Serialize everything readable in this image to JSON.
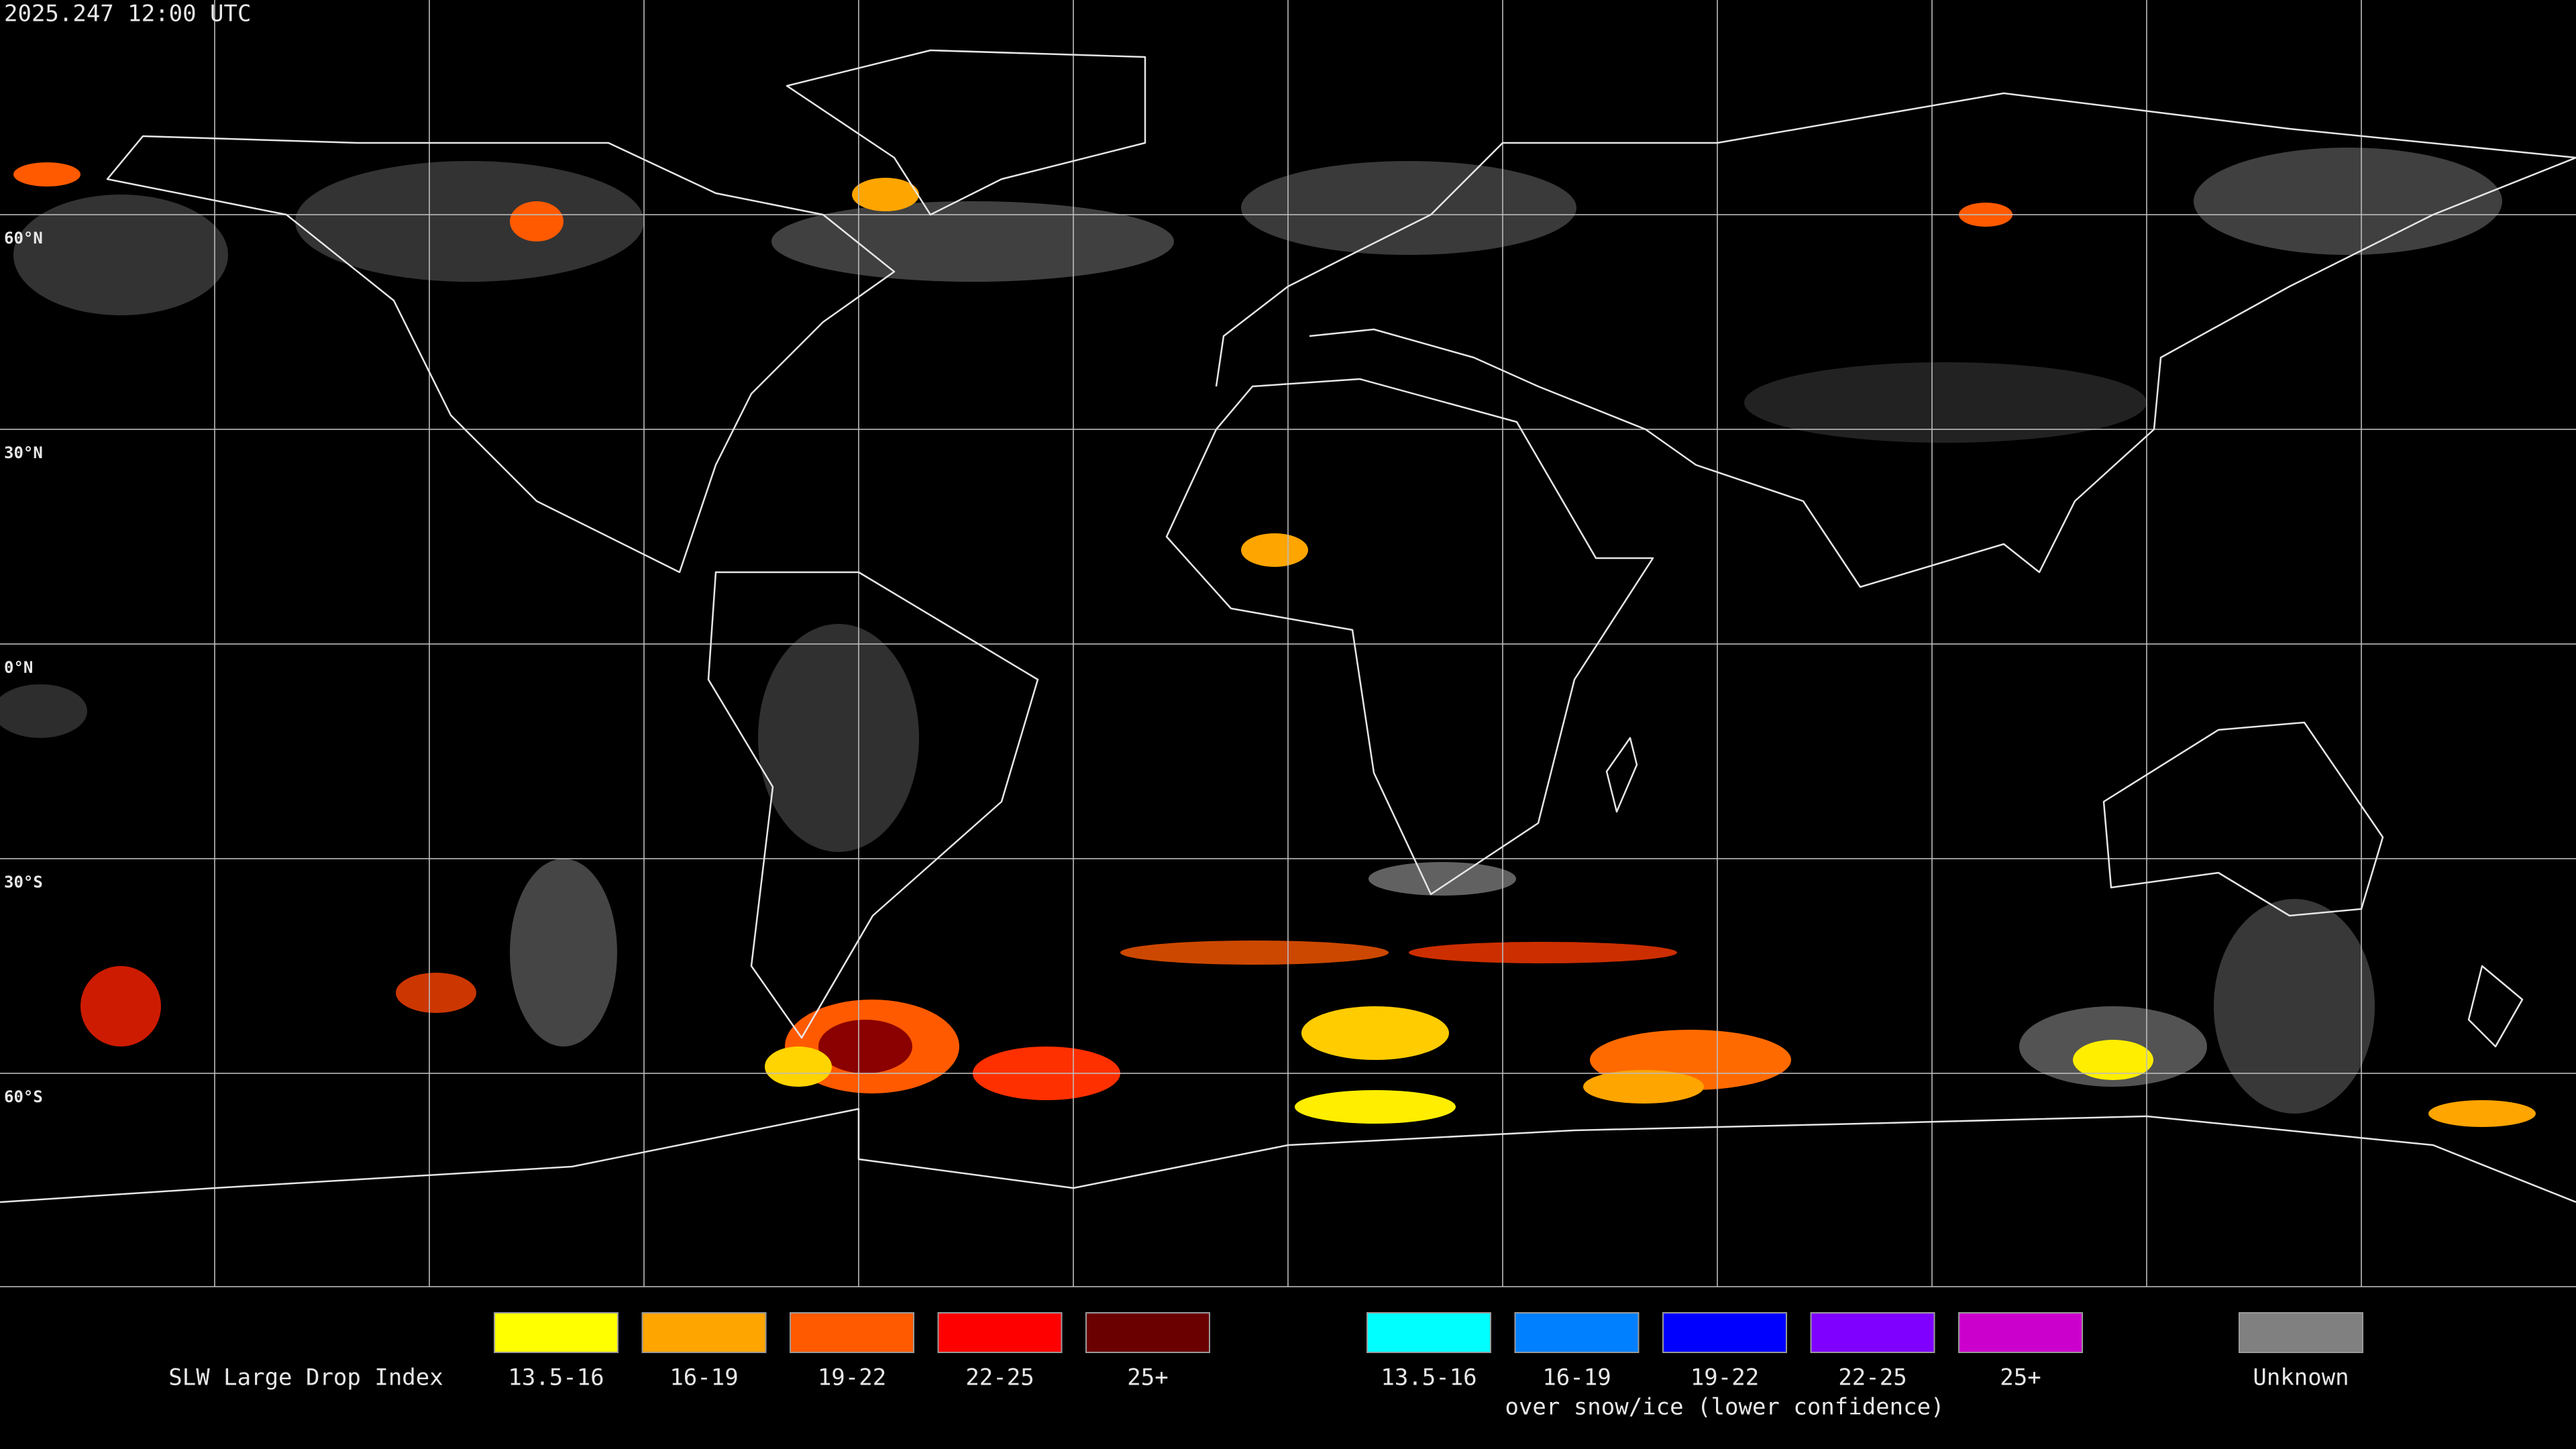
{
  "header": {
    "timestamp": "2025.247 12:00 UTC"
  },
  "map": {
    "latitude_labels": [
      "60°N",
      "30°N",
      "0°N",
      "30°S",
      "60°S"
    ]
  },
  "legend": {
    "title": "SLW Large Drop Index",
    "groups": [
      {
        "items": [
          {
            "label": "13.5-16",
            "color": "#ffff00"
          },
          {
            "label": "16-19",
            "color": "#ffa500"
          },
          {
            "label": "19-22",
            "color": "#ff5a00"
          },
          {
            "label": "22-25",
            "color": "#ff0000"
          },
          {
            "label": "25+",
            "color": "#6b0000"
          }
        ]
      },
      {
        "items": [
          {
            "label": "13.5-16",
            "color": "#00ffff"
          },
          {
            "label": "16-19",
            "color": "#0080ff"
          },
          {
            "label": "19-22",
            "color": "#0000ff"
          },
          {
            "label": "22-25",
            "color": "#7f00ff"
          },
          {
            "label": "25+",
            "color": "#cc00cc"
          }
        ],
        "caption": "over snow/ice (lower confidence)"
      }
    ],
    "unknown": {
      "label": "Unknown",
      "color": "#808080"
    }
  }
}
